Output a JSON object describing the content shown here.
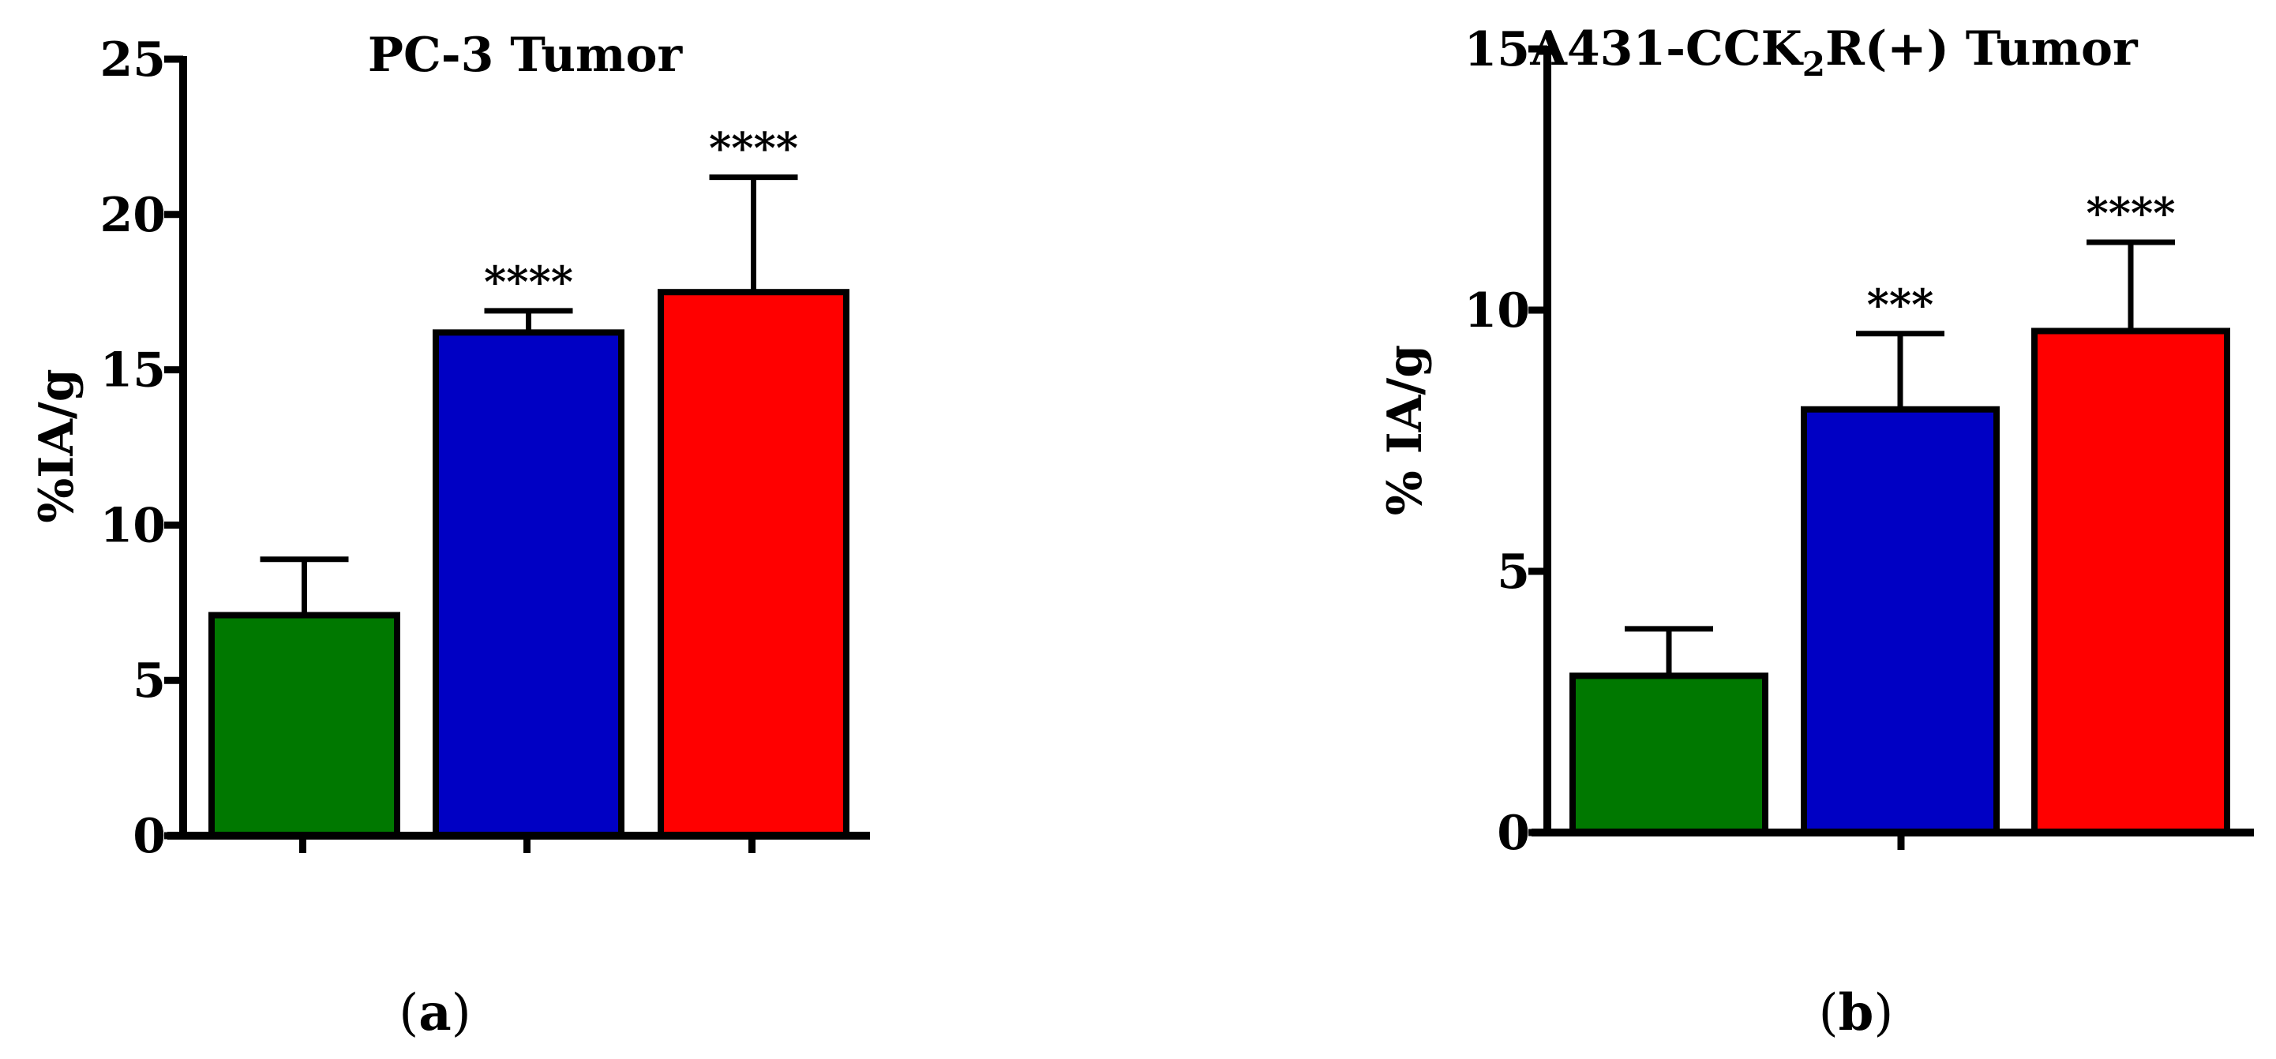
{
  "chart_data": [
    {
      "type": "bar",
      "title": "PC-3 Tumor",
      "ylabel": "%IA/g",
      "xlabel": "",
      "ylim": [
        0,
        25
      ],
      "yticks": [
        0,
        5,
        10,
        15,
        20,
        25
      ],
      "grid": false,
      "panel_label": "(a)",
      "panel_letter": "a",
      "bars": [
        {
          "value": 7.1,
          "error": 1.8,
          "color": "#007800",
          "significance": ""
        },
        {
          "value": 16.2,
          "error": 0.7,
          "color": "#0000c4",
          "significance": "****"
        },
        {
          "value": 17.5,
          "error": 3.7,
          "color": "#ff0000",
          "significance": "****"
        }
      ]
    },
    {
      "type": "bar",
      "title": "A431-CCK2R(+) Tumor",
      "title_parts": {
        "before": "A431-CCK",
        "subscript": "2",
        "after": "R(+) Tumor"
      },
      "ylabel": "% IA/g",
      "xlabel": "",
      "ylim": [
        0,
        15
      ],
      "yticks": [
        0,
        5,
        10,
        15
      ],
      "grid": false,
      "panel_label": "(b)",
      "panel_letter": "b",
      "bars": [
        {
          "value": 3.0,
          "error": 0.9,
          "color": "#007800",
          "significance": ""
        },
        {
          "value": 8.1,
          "error": 1.45,
          "color": "#0000c4",
          "significance": "***"
        },
        {
          "value": 9.6,
          "error": 1.7,
          "color": "#ff0000",
          "significance": "****"
        }
      ]
    }
  ]
}
